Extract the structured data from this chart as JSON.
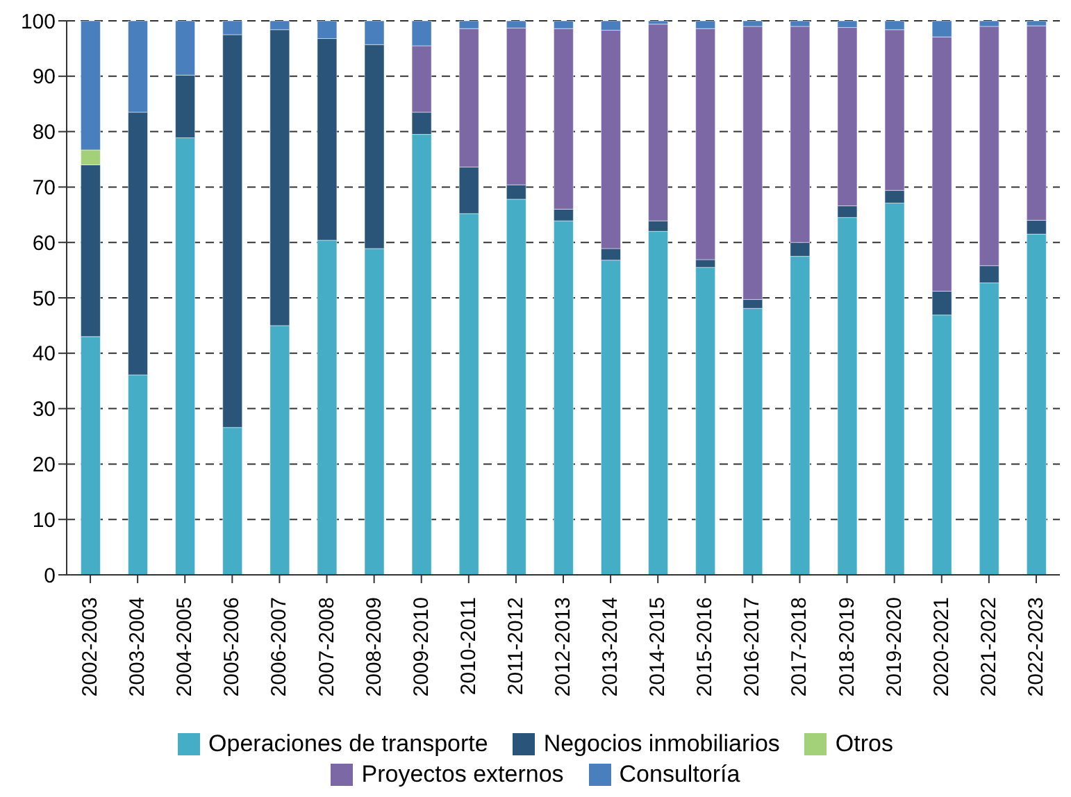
{
  "chart_data": {
    "type": "bar",
    "stacked": true,
    "categories": [
      "2002-2003",
      "2003-2004",
      "2004-2005",
      "2005-2006",
      "2006-2007",
      "2007-2008",
      "2008-2009",
      "2009-2010",
      "2010-2011",
      "2011-2012",
      "2012-2013",
      "2013-2014",
      "2014-2015",
      "2015-2016",
      "2016-2017",
      "2017-2018",
      "2018-2019",
      "2019-2020",
      "2020-2021",
      "2021-2022",
      "2022-2023"
    ],
    "series": [
      {
        "name": "Operaciones de transporte",
        "color": "#45adc5",
        "values": [
          43,
          36.1,
          78.9,
          26.6,
          45,
          60.4,
          58.9,
          79.5,
          65.2,
          67.8,
          63.9,
          56.8,
          62,
          55.5,
          48.1,
          57.5,
          64.5,
          67.1,
          46.9,
          52.7,
          61.5
        ]
      },
      {
        "name": "Negocios inmobiliarios",
        "color": "#2b5479",
        "values": [
          31,
          47.4,
          11.3,
          70.9,
          53.4,
          36.4,
          36.8,
          4,
          8.4,
          2.6,
          2.1,
          2.1,
          1.9,
          1.4,
          1.6,
          2.5,
          2.1,
          2.3,
          4.3,
          3.1,
          2.5
        ]
      },
      {
        "name": "Otros",
        "color": "#a3d17a",
        "values": [
          2.7,
          0,
          0,
          0,
          0,
          0,
          0,
          0,
          0,
          0,
          0,
          0,
          0,
          0,
          0,
          0,
          0,
          0,
          0,
          0,
          0
        ]
      },
      {
        "name": "Proyectos externos",
        "color": "#7d68a6",
        "values": [
          0,
          0,
          0,
          0,
          0,
          0,
          0,
          12,
          25,
          28.3,
          32.6,
          39.4,
          35.5,
          41.7,
          49.3,
          39,
          32.2,
          29,
          45.9,
          43.2,
          35.1
        ]
      },
      {
        "name": "Consultoría",
        "color": "#4a7fbd",
        "values": [
          23.3,
          16.5,
          9.8,
          2.5,
          1.6,
          3.2,
          4.3,
          4.5,
          1.4,
          1.3,
          1.4,
          1.7,
          0.6,
          1.4,
          1,
          1,
          1.2,
          1.6,
          2.9,
          1,
          0.9
        ]
      }
    ],
    "ylim": [
      0,
      100
    ],
    "yticks": [
      0,
      10,
      20,
      30,
      40,
      50,
      60,
      70,
      80,
      90,
      100
    ],
    "grid": "y",
    "legend": "bottom"
  }
}
